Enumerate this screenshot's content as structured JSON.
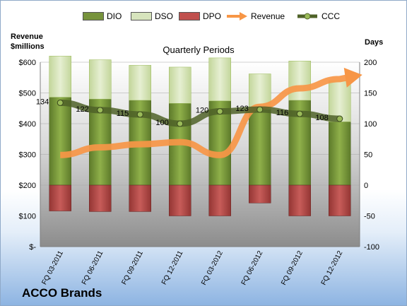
{
  "chart_data": {
    "type": "bar",
    "company": "ACCO Brands",
    "subtitle": "Quarterly Periods",
    "left_axis_title": [
      "Revenue",
      "$millions"
    ],
    "right_axis_title": "Days",
    "categories": [
      "FQ 03-2011",
      "FQ 06-2011",
      "FQ 09-2011",
      "FQ 12-2011",
      "FQ 03-2012",
      "FQ 06-2012",
      "FQ 09-2012",
      "FQ 12-2012"
    ],
    "left_axis": {
      "min": 0,
      "max": 600,
      "step": 100,
      "tick_labels": [
        "$-",
        "$100",
        "$200",
        "$300",
        "$400",
        "$500",
        "$600"
      ]
    },
    "right_axis": {
      "min": -100,
      "max": 200,
      "step": 50,
      "tick_labels": [
        "-100",
        "-50",
        "0",
        "50",
        "100",
        "150",
        "200"
      ]
    },
    "series": [
      {
        "name": "DIO",
        "axis": "right",
        "type": "stacked-bar",
        "color": "#77933c",
        "values": [
          143,
          140,
          138,
          133,
          137,
          123,
          138,
          103
        ]
      },
      {
        "name": "DSO",
        "axis": "right",
        "type": "stacked-bar",
        "color": "#d7e4bd",
        "values": [
          67,
          64,
          57,
          59,
          70,
          58,
          64,
          67
        ]
      },
      {
        "name": "DPO",
        "axis": "right",
        "type": "negative-bar",
        "color": "#c0504d",
        "values": [
          -42,
          -43,
          -43,
          -50,
          -50,
          -29,
          -50,
          -50
        ]
      },
      {
        "name": "Revenue",
        "axis": "left",
        "type": "line-arrow",
        "color": "#f79646",
        "values": [
          298,
          323,
          333,
          340,
          298,
          455,
          515,
          545
        ]
      },
      {
        "name": "CCC",
        "axis": "right",
        "type": "line-markers",
        "color": "#4f6228",
        "values": [
          134,
          122,
          115,
          100,
          120,
          123,
          116,
          108
        ],
        "labels": [
          "134",
          "122",
          "115",
          "100",
          "120",
          "123",
          "116",
          "108"
        ]
      }
    ]
  }
}
